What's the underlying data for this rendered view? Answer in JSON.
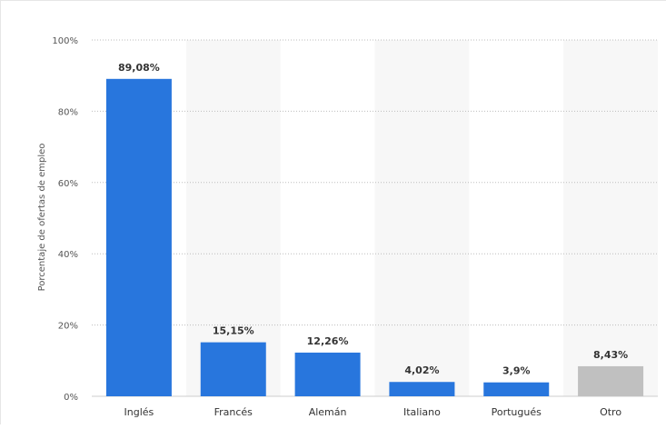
{
  "chart_data": {
    "type": "bar",
    "categories": [
      "Inglés",
      "Francés",
      "Alemán",
      "Italiano",
      "Portugués",
      "Otro"
    ],
    "values": [
      89.08,
      15.15,
      12.26,
      4.02,
      3.9,
      8.43
    ],
    "value_labels": [
      "89,08%",
      "15,15%",
      "12,26%",
      "4,02%",
      "3,9%",
      "8,43%"
    ],
    "bar_colors": [
      "#2876dd",
      "#2876dd",
      "#2876dd",
      "#2876dd",
      "#2876dd",
      "#c0c0c0"
    ],
    "ylabel": "Porcentaje de ofertas de empleo",
    "ylim": [
      0,
      100
    ],
    "yticks": [
      0,
      20,
      40,
      60,
      80,
      100
    ],
    "ytick_labels": [
      "0%",
      "20%",
      "40%",
      "60%",
      "80%",
      "100%"
    ],
    "grid": true,
    "alternating_column_background": "#f7f7f7"
  }
}
